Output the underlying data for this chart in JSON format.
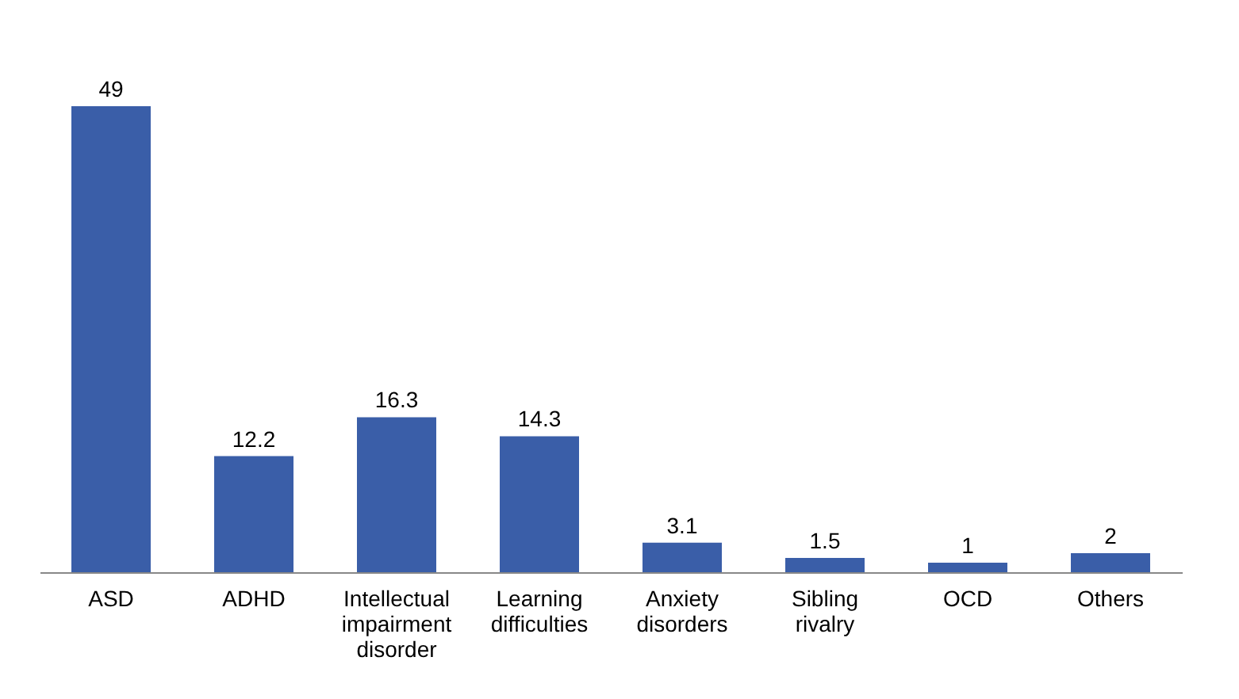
{
  "chart_data": {
    "type": "bar",
    "categories": [
      "ASD",
      "ADHD",
      "Intellectual impairment disorder",
      "Learning difficulties",
      "Anxiety disorders",
      "Sibling rivalry",
      "OCD",
      "Others"
    ],
    "values": [
      49,
      12.2,
      16.3,
      14.3,
      3.1,
      1.5,
      1,
      2
    ],
    "color": "#3a5ea8",
    "data_labels": true
  }
}
